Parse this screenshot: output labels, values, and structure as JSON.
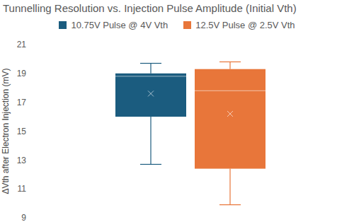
{
  "chart_data": {
    "type": "box",
    "title": "Tunnelling Resolution vs. Injection Pulse Amplitude (Initial Vth)",
    "y_label": "ΔVth after Electron Injection (mV)",
    "series": [
      {
        "name": "10.75V Pulse @ 4V Vth",
        "color": "#1b5c7f",
        "min": 12.7,
        "q1": 16.0,
        "median": 18.8,
        "q3": 19.0,
        "max": 19.7,
        "mean": 17.6
      },
      {
        "name": "12.5V Pulse @ 2.5V Vth",
        "color": "#e8763a",
        "min": 9.9,
        "q1": 12.4,
        "median": 17.8,
        "q3": 19.3,
        "max": 19.8,
        "mean": 16.2
      }
    ],
    "ylim": [
      9,
      21
    ],
    "yticks": [
      9,
      11,
      13,
      15,
      17,
      19,
      21
    ],
    "grid": false,
    "legend": "top",
    "tick_labels": "y"
  }
}
